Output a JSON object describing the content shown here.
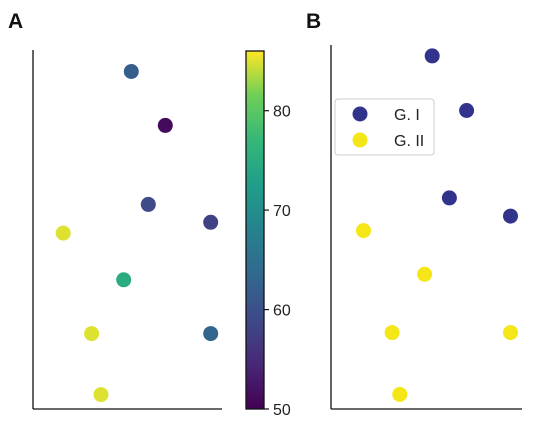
{
  "chart_data": [
    {
      "type": "scatter",
      "panel_label": "A",
      "color_by": "value",
      "colormap": "viridis",
      "colorbar": {
        "range": [
          50,
          86
        ],
        "ticks": [
          50,
          60,
          70,
          80
        ],
        "tick_labels": [
          "50",
          "60",
          "70",
          "80"
        ]
      },
      "xlim": [
        0,
        10
      ],
      "ylim": [
        0,
        10
      ],
      "grid": false,
      "points": [
        {
          "x": 5.2,
          "y": 9.4,
          "value": 62
        },
        {
          "x": 7.0,
          "y": 7.9,
          "value": 51
        },
        {
          "x": 6.1,
          "y": 5.7,
          "value": 59
        },
        {
          "x": 9.4,
          "y": 5.2,
          "value": 58
        },
        {
          "x": 1.6,
          "y": 4.9,
          "value": 85
        },
        {
          "x": 4.8,
          "y": 3.6,
          "value": 75
        },
        {
          "x": 3.1,
          "y": 2.1,
          "value": 85
        },
        {
          "x": 9.4,
          "y": 2.1,
          "value": 63
        },
        {
          "x": 3.6,
          "y": 0.4,
          "value": 85
        }
      ]
    },
    {
      "type": "scatter",
      "panel_label": "B",
      "xlim": [
        0,
        10
      ],
      "ylim": [
        0,
        10
      ],
      "grid": false,
      "legend": "top-left",
      "series": [
        {
          "name": "G. I",
          "color": "#31348a",
          "points": [
            {
              "x": 5.3,
              "y": 9.7
            },
            {
              "x": 7.1,
              "y": 8.2
            },
            {
              "x": 6.2,
              "y": 5.8
            },
            {
              "x": 9.4,
              "y": 5.3
            }
          ]
        },
        {
          "name": "G. II",
          "color": "#f4e617",
          "points": [
            {
              "x": 1.7,
              "y": 4.9
            },
            {
              "x": 4.9,
              "y": 3.7
            },
            {
              "x": 3.2,
              "y": 2.1
            },
            {
              "x": 9.4,
              "y": 2.1
            },
            {
              "x": 3.6,
              "y": 0.4
            }
          ]
        }
      ]
    }
  ]
}
